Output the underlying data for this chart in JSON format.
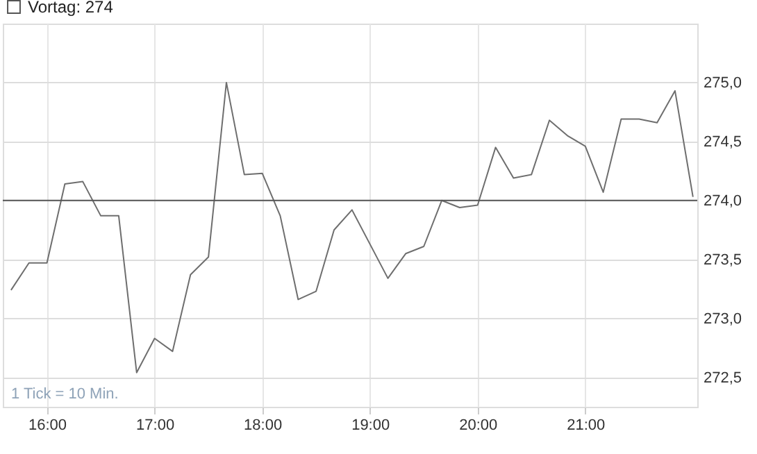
{
  "chart_data": {
    "type": "line",
    "x": [
      15.6667,
      15.8333,
      16,
      16.1667,
      16.3333,
      16.5,
      16.6667,
      16.8333,
      17,
      17.1667,
      17.3333,
      17.5,
      17.6667,
      17.8333,
      18,
      18.1667,
      18.3333,
      18.5,
      18.6667,
      18.8333,
      19,
      19.1667,
      19.3333,
      19.5,
      19.6667,
      19.8333,
      20,
      20.1667,
      20.3333,
      20.5,
      20.6667,
      20.8333,
      21,
      21.1667,
      21.3333,
      21.5,
      21.6667,
      21.8333,
      22
    ],
    "series": [
      {
        "color": "#6e6e6e",
        "values": [
          273.24,
          273.47,
          273.47,
          274.14,
          274.16,
          273.87,
          273.87,
          272.54,
          272.83,
          272.72,
          273.37,
          273.52,
          275.0,
          274.22,
          274.23,
          273.87,
          273.16,
          273.23,
          273.75,
          273.92,
          273.63,
          273.34,
          273.55,
          273.61,
          274.0,
          273.94,
          273.96,
          274.45,
          274.19,
          274.22,
          274.68,
          274.55,
          274.46,
          274.07,
          274.69,
          274.69,
          274.66,
          274.93,
          274.03
        ]
      }
    ],
    "xlim": [
      15.59,
      22.04
    ],
    "xticks": [
      {
        "value": 16,
        "label": "16:00"
      },
      {
        "value": 17,
        "label": "17:00"
      },
      {
        "value": 18,
        "label": "18:00"
      },
      {
        "value": 19,
        "label": "19:00"
      },
      {
        "value": 20,
        "label": "20:00"
      },
      {
        "value": 21,
        "label": "21:00"
      }
    ],
    "ylim": [
      272.25,
      275.5
    ],
    "yticks": [
      {
        "value": 272.5,
        "label": "272,5"
      },
      {
        "value": 273,
        "label": "273,0"
      },
      {
        "value": 273.5,
        "label": "273,5"
      },
      {
        "value": 274,
        "label": "274,0"
      },
      {
        "value": 274.5,
        "label": "274,5"
      },
      {
        "value": 275,
        "label": "275,0"
      }
    ],
    "ref_lines": [
      {
        "axis": "y",
        "value": 274,
        "label": "Vortag: 274",
        "color": "#555555"
      }
    ],
    "annotations": [
      "1 Tick = 10 Min."
    ],
    "grid": true,
    "legend": "top left",
    "marker": "none",
    "line_style": "solid"
  }
}
